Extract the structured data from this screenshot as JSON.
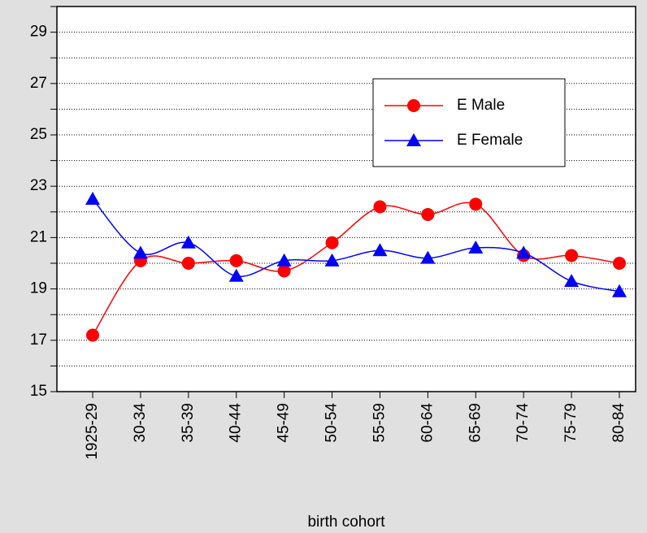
{
  "chart_data": {
    "type": "line",
    "x_label": "birth cohort",
    "categories": [
      "1925-29",
      "30-34",
      "35-39",
      "40-44",
      "45-49",
      "50-54",
      "55-59",
      "60-64",
      "65-69",
      "70-74",
      "75-79",
      "80-84"
    ],
    "series": [
      {
        "name": "E Male",
        "color": "#ff0000",
        "marker": "circle",
        "values": [
          17.2,
          20.1,
          20.0,
          20.1,
          19.7,
          20.8,
          22.2,
          21.9,
          22.3,
          20.3,
          20.3,
          20.0
        ]
      },
      {
        "name": "E Female",
        "color": "#0000ff",
        "marker": "triangle",
        "values": [
          22.5,
          20.4,
          20.8,
          19.5,
          20.1,
          20.1,
          20.5,
          20.2,
          20.6,
          20.4,
          19.3,
          18.9
        ]
      }
    ],
    "ylim": [
      15,
      30
    ],
    "yticks": [
      15,
      17,
      19,
      21,
      23,
      25,
      27,
      29
    ],
    "yminorticks": [
      16,
      18,
      20,
      22,
      24,
      26,
      28,
      30
    ],
    "grid": true,
    "legend": "upper right"
  }
}
